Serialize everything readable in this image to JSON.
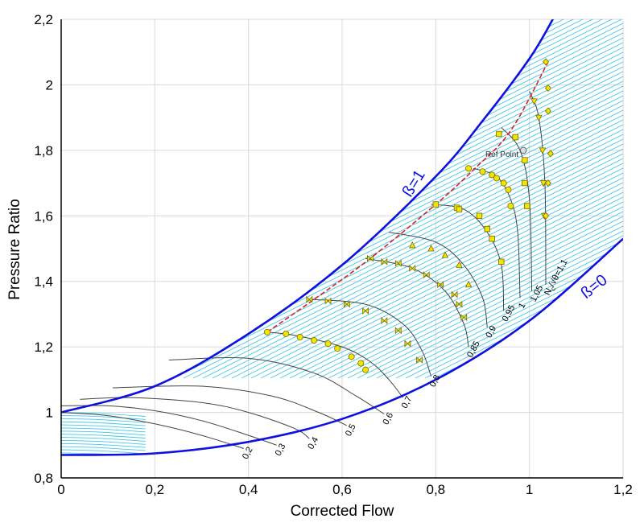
{
  "chart_data": {
    "type": "line",
    "xlabel": "Corrected Flow",
    "ylabel": "Pressure Ratio",
    "xlim": [
      0,
      1.2
    ],
    "ylim": [
      0.8,
      2.2
    ],
    "x_ticks": [
      "0",
      "0,2",
      "0,4",
      "0,6",
      "0,8",
      "1",
      "1,2"
    ],
    "y_ticks": [
      "0,8",
      "1",
      "1,2",
      "1,4",
      "1,6",
      "1,8",
      "2",
      "2,2"
    ],
    "grid": true,
    "beta_lines": [
      {
        "label": "ß=1",
        "x": [
          0,
          0.2,
          0.4,
          0.6,
          0.8,
          0.9,
          1.0,
          1.05
        ],
        "y": [
          1.0,
          1.08,
          1.24,
          1.45,
          1.72,
          1.89,
          2.08,
          2.2
        ]
      },
      {
        "label": "ß=0",
        "x": [
          0,
          0.2,
          0.4,
          0.6,
          0.8,
          1.0,
          1.2
        ],
        "y": [
          0.87,
          0.875,
          0.91,
          0.98,
          1.1,
          1.28,
          1.53
        ]
      }
    ],
    "surge_line": {
      "x": [
        0.44,
        0.54,
        0.66,
        0.8,
        0.88,
        0.96,
        1.04
      ],
      "y": [
        1.245,
        1.345,
        1.47,
        1.635,
        1.74,
        1.86,
        2.07
      ]
    },
    "speed_lines": [
      {
        "label": "0,2",
        "x": [
          0,
          0.1,
          0.2,
          0.3,
          0.39
        ],
        "y": [
          1.0,
          0.99,
          0.965,
          0.93,
          0.89
        ]
      },
      {
        "label": "0,3",
        "x": [
          0,
          0.1,
          0.2,
          0.3,
          0.4,
          0.46
        ],
        "y": [
          1.02,
          1.02,
          1.005,
          0.975,
          0.93,
          0.9
        ]
      },
      {
        "label": "0,4",
        "x": [
          0.04,
          0.15,
          0.3,
          0.4,
          0.5,
          0.53
        ],
        "y": [
          1.04,
          1.045,
          1.03,
          1.0,
          0.95,
          0.92
        ]
      },
      {
        "label": "0,5",
        "x": [
          0.11,
          0.3,
          0.45,
          0.55,
          0.61
        ],
        "y": [
          1.075,
          1.08,
          1.05,
          1.0,
          0.96
        ]
      },
      {
        "label": "0,6",
        "x": [
          0.23,
          0.4,
          0.54,
          0.63,
          0.69
        ],
        "y": [
          1.16,
          1.165,
          1.12,
          1.05,
          0.995
        ]
      },
      {
        "label": "0,7",
        "x": [
          0.44,
          0.5,
          0.6,
          0.66,
          0.7,
          0.73
        ],
        "y": [
          1.245,
          1.235,
          1.2,
          1.155,
          1.1,
          1.045
        ]
      },
      {
        "label": "0,8",
        "x": [
          0.53,
          0.65,
          0.73,
          0.77,
          0.79
        ],
        "y": [
          1.345,
          1.33,
          1.27,
          1.19,
          1.11
        ]
      },
      {
        "label": "0,85",
        "x": [
          0.65,
          0.75,
          0.82,
          0.86,
          0.87
        ],
        "y": [
          1.47,
          1.44,
          1.37,
          1.27,
          1.2
        ]
      },
      {
        "label": "0,9",
        "x": [
          0.7,
          0.8,
          0.86,
          0.9,
          0.91
        ],
        "y": [
          1.55,
          1.52,
          1.45,
          1.35,
          1.26
        ]
      },
      {
        "label": "0,95",
        "x": [
          0.79,
          0.86,
          0.91,
          0.94,
          0.945
        ],
        "y": [
          1.635,
          1.62,
          1.55,
          1.45,
          1.31
        ]
      },
      {
        "label": "1",
        "x": [
          0.88,
          0.93,
          0.96,
          0.975,
          0.98
        ],
        "y": [
          1.745,
          1.72,
          1.65,
          1.55,
          1.35
        ]
      },
      {
        "label": "1,05",
        "x": [
          0.94,
          0.98,
          1.0,
          1.005
        ],
        "y": [
          1.87,
          1.8,
          1.65,
          1.37
        ]
      },
      {
        "label": "1,1",
        "x": [
          1.0,
          1.02,
          1.033,
          1.035
        ],
        "y": [
          1.98,
          1.9,
          1.7,
          1.39
        ]
      }
    ],
    "speed_line_label_prefix": "N",
    "speed_line_label_subscript": "c",
    "speed_line_label_fraction": "/√θ",
    "speed_line_label_equals": "=",
    "reference_point": {
      "label": "Ref Point",
      "x": 0.987,
      "y": 1.8
    },
    "marker_series": [
      {
        "marker": "circle",
        "x": [
          0.44,
          0.48,
          0.51,
          0.54,
          0.57,
          0.59,
          0.62,
          0.64,
          0.65
        ],
        "y": [
          1.245,
          1.24,
          1.23,
          1.22,
          1.21,
          1.195,
          1.17,
          1.15,
          1.13
        ]
      },
      {
        "marker": "bowtie",
        "x": [
          0.53,
          0.57,
          0.61,
          0.65,
          0.69,
          0.72,
          0.74,
          0.765
        ],
        "y": [
          1.345,
          1.34,
          1.33,
          1.31,
          1.28,
          1.25,
          1.21,
          1.16
        ]
      },
      {
        "marker": "bowtie",
        "x": [
          0.66,
          0.69,
          0.72,
          0.75,
          0.78,
          0.81,
          0.84,
          0.85,
          0.86
        ],
        "y": [
          1.47,
          1.46,
          1.455,
          1.44,
          1.42,
          1.39,
          1.36,
          1.33,
          1.29
        ]
      },
      {
        "marker": "triangle",
        "x": [
          0.75,
          0.79,
          0.82,
          0.85,
          0.87
        ],
        "y": [
          1.51,
          1.5,
          1.48,
          1.45,
          1.39
        ]
      },
      {
        "marker": "box",
        "x": [
          0.8,
          0.845,
          0.85,
          0.893,
          0.91,
          0.92,
          0.94
        ],
        "y": [
          1.635,
          1.625,
          1.62,
          1.6,
          1.56,
          1.53,
          1.46
        ]
      },
      {
        "marker": "circle",
        "x": [
          0.87,
          0.9,
          0.92,
          0.93,
          0.945,
          0.955,
          0.96
        ],
        "y": [
          1.745,
          1.735,
          1.725,
          1.715,
          1.7,
          1.68,
          1.63
        ]
      },
      {
        "marker": "square",
        "x": [
          0.935,
          0.97,
          0.99,
          0.99,
          0.995
        ],
        "y": [
          1.85,
          1.84,
          1.77,
          1.7,
          1.63
        ]
      },
      {
        "marker": "triangle-down",
        "x": [
          1.01,
          1.02,
          1.028,
          1.03,
          1.032
        ],
        "y": [
          1.95,
          1.9,
          1.8,
          1.7,
          1.6
        ]
      },
      {
        "marker": "diamond",
        "x": [
          1.035,
          1.04,
          1.04,
          1.045,
          1.04,
          1.035
        ],
        "y": [
          2.07,
          1.99,
          1.92,
          1.79,
          1.7,
          1.6
        ]
      }
    ],
    "ytick_values": [
      0.8,
      1,
      1.2,
      1.4,
      1.6,
      1.8,
      2,
      2.2
    ],
    "xtick_values": [
      0,
      0.2,
      0.4,
      0.6,
      0.8,
      1,
      1.2
    ],
    "colors": {
      "beta": "#1010e0",
      "hatch": "#45c8e6",
      "speed": "#444444",
      "surge": "#e02020",
      "marker": "#f2e600",
      "grid": "#d9d9d9"
    }
  }
}
